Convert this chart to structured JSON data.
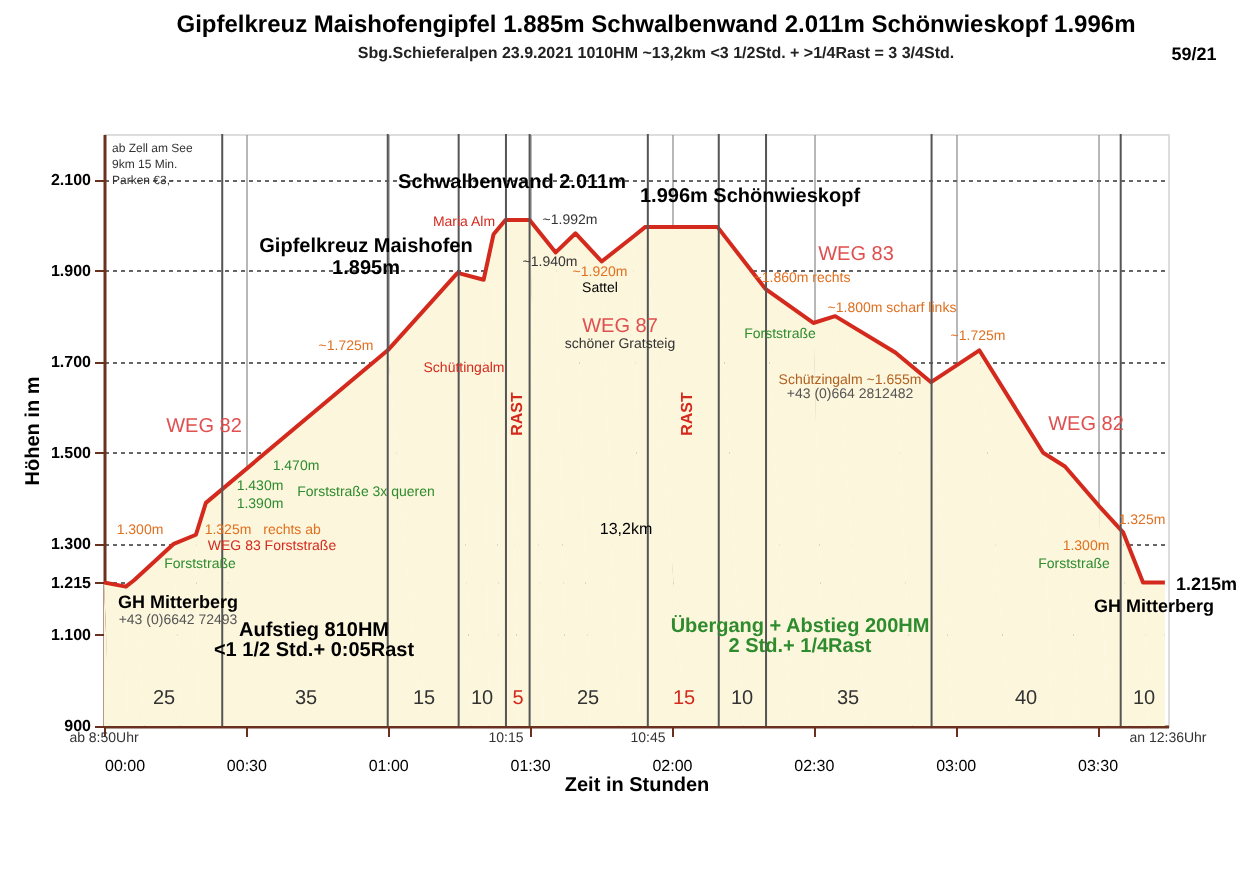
{
  "chart_data": {
    "type": "area",
    "title": "Gipfelkreuz  Maishofengipfel 1.885m Schwalbenwand 2.011m  Schönwieskopf 1.996m",
    "subtitle": "Sbg.Schieferalpen     23.9.2021     1010HM     ~13,2km   <3 1/2Std. + >1/4Rast = 3 3/4Std.",
    "xlabel": "Zeit in Stunden",
    "ylabel": "Höhen in m",
    "x": [
      0,
      0.077,
      0.106,
      0.246,
      0.324,
      0.359,
      1.0,
      1.246,
      1.338,
      1.373,
      1.415,
      1.5,
      1.592,
      1.662,
      1.754,
      1.866,
      1.908,
      2.162,
      2.331,
      2.5,
      2.577,
      2.789,
      2.915,
      3.085,
      3.31,
      3.387,
      3.507,
      3.592,
      3.662,
      3.739
    ],
    "series": [
      {
        "color": "#d42a1e",
        "values": [
          1215,
          1206,
          1220,
          1300,
          1320,
          1390,
          1725,
          1895,
          1880,
          1980,
          2011,
          2011,
          1940,
          1982,
          1920,
          1975,
          1996,
          1996,
          1860,
          1785,
          1800,
          1720,
          1655,
          1725,
          1500,
          1470,
          1383,
          1325,
          1215,
          1215
        ]
      }
    ],
    "xlim": [
      0,
      3.75
    ],
    "ylim": [
      900,
      2200
    ],
    "xticks": [
      {
        "value": 0,
        "label": "00:00"
      },
      {
        "value": 0.5,
        "label": "00:30"
      },
      {
        "value": 1,
        "label": "01:00"
      },
      {
        "value": 1.5,
        "label": "01:30"
      },
      {
        "value": 2,
        "label": "02:00"
      },
      {
        "value": 2.5,
        "label": "02:30"
      },
      {
        "value": 3,
        "label": "03:00"
      },
      {
        "value": 3.5,
        "label": "03:30"
      }
    ],
    "yticks": [
      900,
      {
        "value": 1100,
        "label": "1.100"
      },
      {
        "value": 1215,
        "label": "1.215"
      },
      {
        "value": 1300,
        "label": "1.300"
      },
      {
        "value": 1500,
        "label": "1.500"
      },
      {
        "value": 1700,
        "label": "1.700"
      },
      {
        "value": 1900,
        "label": "1.900"
      },
      {
        "value": 2100,
        "label": "2.100"
      }
    ],
    "grid": true,
    "ref_lines": [
      {
        "axis": "x",
        "value": 0.4167,
        "color": "#555555"
      },
      {
        "axis": "x",
        "value": 1.0,
        "color": "#555555"
      },
      {
        "axis": "x",
        "value": 1.25,
        "color": "#555555"
      },
      {
        "axis": "x",
        "value": 1.4167,
        "color": "#555555"
      },
      {
        "axis": "x",
        "value": 1.5,
        "color": "#555555"
      },
      {
        "axis": "x",
        "value": 1.9167,
        "color": "#555555"
      },
      {
        "axis": "x",
        "value": 2.1667,
        "color": "#555555"
      },
      {
        "axis": "x",
        "value": 2.3333,
        "color": "#555555"
      },
      {
        "axis": "x",
        "value": 2.9167,
        "color": "#555555"
      },
      {
        "axis": "x",
        "value": 3.5833,
        "color": "#555555"
      }
    ],
    "annotations": [
      "Schwalbenwand 2.011m",
      "1.996m Schönwieskopf",
      "Gipfelkreuz Maishofen",
      "1.895m",
      "Maria Alm",
      "~1.992m",
      "~1.940m",
      "~1.920m",
      "Sattel",
      "WEG 87",
      "schöner Gratsteig",
      "WEG 83",
      "~1.860m rechts",
      "~1.800m scharf links",
      "Forststraße",
      "~1.725m",
      "Schützingalm  ~1.655m",
      "+43 (0)664 2812482",
      "WEG 82",
      "1.325m",
      "1.300m",
      "Forststraße",
      "GH Mitterberg",
      "1.215m",
      "GH Mitterberg",
      "+43 (0)6642 72493",
      "1.300m",
      "1.325m",
      "rechts ab",
      "WEG 83 Forststraße",
      "Forststraße",
      "1.390m",
      "1.430m",
      "1.470m",
      "Forststraße 3x queren",
      "WEG 82",
      "~1.725m",
      "Schüttingalm",
      "13,2km",
      "Aufstieg 810HM",
      "<1 1/2 Std.+ 0:05Rast",
      "Übergang + Abstieg 200HM",
      "2 Std.+ 1/4Rast",
      "RAST",
      "RAST",
      "25",
      "35",
      "15",
      "10",
      "5",
      "25",
      "15",
      "10",
      "35",
      "40",
      "10",
      "ab 8:50Uhr",
      "10:15",
      "10:45",
      "an 12:36Uhr",
      "ab Zell am See\n9km 15 Min.\nParken €3,-",
      "59/21"
    ]
  }
}
